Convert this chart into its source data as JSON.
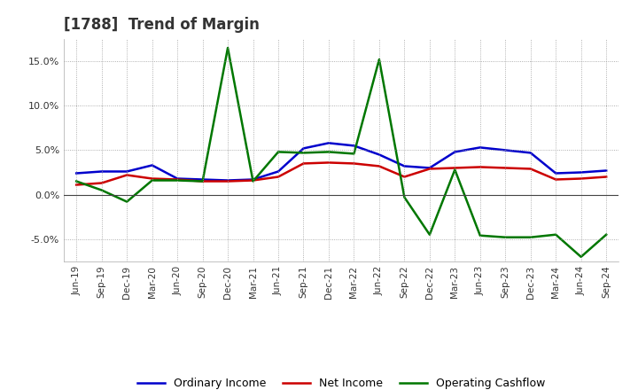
{
  "title": "[1788]  Trend of Margin",
  "x_labels": [
    "Jun-19",
    "Sep-19",
    "Dec-19",
    "Mar-20",
    "Jun-20",
    "Sep-20",
    "Dec-20",
    "Mar-21",
    "Jun-21",
    "Sep-21",
    "Dec-21",
    "Mar-22",
    "Jun-22",
    "Sep-22",
    "Dec-22",
    "Mar-23",
    "Jun-23",
    "Sep-23",
    "Dec-23",
    "Mar-24",
    "Jun-24",
    "Sep-24"
  ],
  "ordinary_income": [
    2.4,
    2.6,
    2.6,
    3.3,
    1.8,
    1.7,
    1.6,
    1.7,
    2.6,
    5.2,
    5.8,
    5.5,
    4.5,
    3.2,
    3.0,
    4.8,
    5.3,
    5.0,
    4.7,
    2.4,
    2.5,
    2.7
  ],
  "net_income": [
    1.1,
    1.3,
    2.2,
    1.8,
    1.7,
    1.5,
    1.5,
    1.6,
    2.0,
    3.5,
    3.6,
    3.5,
    3.2,
    2.0,
    2.9,
    3.0,
    3.1,
    3.0,
    2.9,
    1.7,
    1.8,
    2.0
  ],
  "operating_cashflow": [
    1.5,
    0.5,
    -0.8,
    1.6,
    1.6,
    1.5,
    16.5,
    1.5,
    4.8,
    4.7,
    4.8,
    4.6,
    15.2,
    -0.3,
    -4.5,
    2.8,
    -4.6,
    -4.8,
    -4.8,
    -4.5,
    -7.0,
    -4.5
  ],
  "colors": {
    "ordinary_income": "#0000cc",
    "net_income": "#cc0000",
    "operating_cashflow": "#007700"
  },
  "ylim": [
    -7.5,
    17.5
  ],
  "yticks": [
    -5.0,
    0.0,
    5.0,
    10.0,
    15.0
  ],
  "background_color": "#ffffff",
  "grid_color": "#999999",
  "title_fontsize": 12,
  "title_color": "#333333",
  "legend_labels": [
    "Ordinary Income",
    "Net Income",
    "Operating Cashflow"
  ]
}
